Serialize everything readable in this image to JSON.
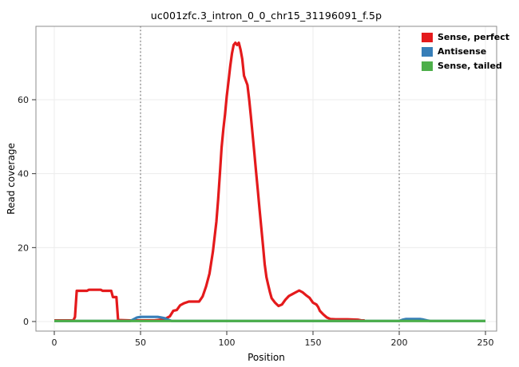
{
  "figure": {
    "title": "uc001zfc.3_intron_0_0_chr15_31196091_f.5p"
  },
  "chart_data": {
    "type": "line",
    "title": "uc001zfc.3_intron_0_0_chr15_31196091_f.5p",
    "xlabel": "Position",
    "ylabel": "Read coverage",
    "xlim": [
      0,
      250
    ],
    "ylim": [
      -2.6,
      80
    ],
    "xticks": [
      0,
      50,
      100,
      150,
      200,
      250
    ],
    "yticks": [
      0,
      20,
      40,
      60
    ],
    "vlines": [
      50,
      200
    ],
    "grid": true,
    "legend_position": "top-right",
    "panel_border_color": "#8c8c8c",
    "gridline_color": "#ececec",
    "vline_color": "#4d4d4d",
    "tick_color": "#333333",
    "series": [
      {
        "name": "Sense, perfect",
        "color": "#E41A1C",
        "points": [
          [
            0,
            0.3
          ],
          [
            11,
            0.3
          ],
          [
            12,
            1.2
          ],
          [
            13,
            8.3
          ],
          [
            19,
            8.3
          ],
          [
            20,
            8.6
          ],
          [
            27,
            8.6
          ],
          [
            28,
            8.3
          ],
          [
            33,
            8.3
          ],
          [
            34,
            6.6
          ],
          [
            36,
            6.6
          ],
          [
            37,
            0.4
          ],
          [
            44,
            0.3
          ],
          [
            58,
            0.3
          ],
          [
            62,
            0.5
          ],
          [
            65,
            0.9
          ],
          [
            67,
            1.4
          ],
          [
            69,
            2.9
          ],
          [
            71,
            3.1
          ],
          [
            73,
            4.4
          ],
          [
            75,
            4.9
          ],
          [
            78,
            5.4
          ],
          [
            84,
            5.4
          ],
          [
            86,
            6.8
          ],
          [
            88,
            9.5
          ],
          [
            90,
            13
          ],
          [
            92,
            19
          ],
          [
            94,
            27
          ],
          [
            95,
            33
          ],
          [
            96,
            40
          ],
          [
            97,
            47
          ],
          [
            98,
            52
          ],
          [
            99,
            56
          ],
          [
            100,
            61
          ],
          [
            101,
            65
          ],
          [
            102,
            69
          ],
          [
            103,
            72.5
          ],
          [
            104,
            74.8
          ],
          [
            105,
            75.4
          ],
          [
            106,
            74.8
          ],
          [
            107,
            75.4
          ],
          [
            108,
            73.5
          ],
          [
            109,
            71
          ],
          [
            110,
            66.5
          ],
          [
            112,
            64
          ],
          [
            113,
            60
          ],
          [
            114,
            55.5
          ],
          [
            115,
            50.5
          ],
          [
            116,
            45.5
          ],
          [
            117,
            40.5
          ],
          [
            118,
            35.5
          ],
          [
            119,
            30.5
          ],
          [
            120,
            25.5
          ],
          [
            121,
            20.5
          ],
          [
            122,
            15.5
          ],
          [
            123,
            12
          ],
          [
            124,
            10
          ],
          [
            125,
            8
          ],
          [
            126,
            6.3
          ],
          [
            128,
            5.1
          ],
          [
            130,
            4.2
          ],
          [
            132,
            4.6
          ],
          [
            134,
            5.9
          ],
          [
            136,
            6.9
          ],
          [
            138,
            7.4
          ],
          [
            140,
            7.9
          ],
          [
            142,
            8.4
          ],
          [
            144,
            7.9
          ],
          [
            146,
            7.1
          ],
          [
            148,
            6.4
          ],
          [
            150,
            5.1
          ],
          [
            152,
            4.6
          ],
          [
            153,
            3.9
          ],
          [
            154,
            2.9
          ],
          [
            156,
            1.9
          ],
          [
            158,
            1.1
          ],
          [
            160,
            0.7
          ],
          [
            163,
            0.6
          ],
          [
            170,
            0.6
          ],
          [
            176,
            0.5
          ],
          [
            178,
            0.3
          ],
          [
            180,
            0.3
          ]
        ]
      },
      {
        "name": "Antisense",
        "color": "#377EB8",
        "points": [
          [
            0,
            0.15
          ],
          [
            44,
            0.15
          ],
          [
            46,
            0.6
          ],
          [
            48,
            1.1
          ],
          [
            50,
            1.25
          ],
          [
            60,
            1.25
          ],
          [
            62,
            1.1
          ],
          [
            64,
            0.9
          ],
          [
            66,
            0.5
          ],
          [
            68,
            0.15
          ],
          [
            200,
            0.15
          ],
          [
            202,
            0.5
          ],
          [
            204,
            0.7
          ],
          [
            212,
            0.7
          ],
          [
            214,
            0.55
          ],
          [
            216,
            0.3
          ],
          [
            218,
            0.15
          ],
          [
            250,
            0.15
          ]
        ]
      },
      {
        "name": "Sense, tailed",
        "color": "#4DAF4A",
        "points": [
          [
            0,
            0.15
          ],
          [
            250,
            0.15
          ]
        ]
      }
    ]
  }
}
